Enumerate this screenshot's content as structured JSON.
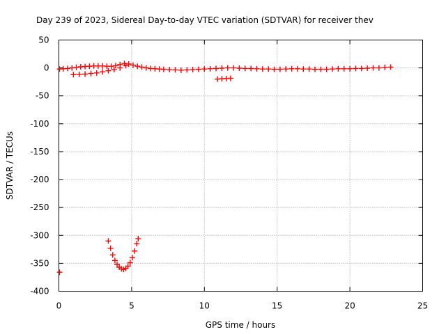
{
  "chart_data": {
    "type": "scatter",
    "title": "Day 239 of 2023, Sidereal Day-to-day VTEC variation (SDTVAR) for receiver thev",
    "xlabel": "GPS time / hours",
    "ylabel": "SDTVAR / TECUs",
    "xlim": [
      0,
      25
    ],
    "ylim": [
      -400,
      50
    ],
    "xticks": [
      "0",
      "5",
      "10",
      "15",
      "20",
      "25"
    ],
    "yticks": [
      "50",
      "0",
      "-50",
      "-100",
      "-150",
      "-200",
      "-250",
      "-300",
      "-350",
      "-400"
    ],
    "grid": true,
    "marker": "plus",
    "color": "#ff0000",
    "series": [
      {
        "points": [
          [
            0.05,
            -2
          ],
          [
            0.3,
            -1.5
          ],
          [
            0.6,
            -1
          ],
          [
            0.9,
            0
          ],
          [
            1.2,
            1
          ],
          [
            1.5,
            2
          ],
          [
            1.8,
            2.5
          ],
          [
            2.1,
            3
          ],
          [
            2.4,
            3.5
          ],
          [
            2.7,
            3.5
          ],
          [
            3.0,
            3.5
          ],
          [
            3.3,
            3
          ],
          [
            3.6,
            3
          ],
          [
            3.9,
            4
          ],
          [
            4.2,
            6
          ],
          [
            4.5,
            8
          ],
          [
            4.8,
            7
          ],
          [
            5.1,
            5
          ],
          [
            5.4,
            3
          ],
          [
            5.7,
            1.5
          ],
          [
            6.0,
            0
          ],
          [
            6.3,
            -1
          ],
          [
            6.6,
            -1.5
          ],
          [
            6.9,
            -2
          ],
          [
            7.2,
            -2.5
          ],
          [
            7.6,
            -3
          ],
          [
            8.0,
            -3.5
          ],
          [
            8.4,
            -4
          ],
          [
            8.8,
            -3.5
          ],
          [
            9.2,
            -3
          ],
          [
            9.6,
            -2.5
          ],
          [
            10.0,
            -2
          ],
          [
            10.4,
            -1.5
          ],
          [
            10.8,
            -1
          ],
          [
            11.2,
            -0.5
          ],
          [
            11.6,
            0
          ],
          [
            12.0,
            0
          ],
          [
            12.4,
            -0.5
          ],
          [
            12.8,
            -1
          ],
          [
            13.2,
            -1
          ],
          [
            13.6,
            -1.5
          ],
          [
            14.0,
            -2
          ],
          [
            14.4,
            -2
          ],
          [
            14.8,
            -2.5
          ],
          [
            15.2,
            -2.5
          ],
          [
            15.6,
            -2
          ],
          [
            16.0,
            -1.5
          ],
          [
            16.4,
            -1.5
          ],
          [
            16.8,
            -2
          ],
          [
            17.2,
            -2
          ],
          [
            17.6,
            -2.5
          ],
          [
            18.0,
            -2.5
          ],
          [
            18.4,
            -2.5
          ],
          [
            18.8,
            -2
          ],
          [
            19.2,
            -1.5
          ],
          [
            19.6,
            -1.5
          ],
          [
            20.0,
            -1.5
          ],
          [
            20.4,
            -1
          ],
          [
            20.8,
            -1
          ],
          [
            21.2,
            -0.5
          ],
          [
            21.6,
            0
          ],
          [
            22.0,
            0
          ],
          [
            22.4,
            1
          ],
          [
            22.8,
            1.5
          ]
        ]
      },
      {
        "points": [
          [
            1.0,
            -12
          ],
          [
            1.4,
            -11.5
          ],
          [
            1.8,
            -11
          ],
          [
            2.2,
            -10
          ],
          [
            2.6,
            -9
          ],
          [
            3.0,
            -7
          ],
          [
            3.4,
            -5
          ],
          [
            3.8,
            -3
          ],
          [
            4.2,
            0
          ],
          [
            4.6,
            4
          ]
        ]
      },
      {
        "points": [
          [
            10.9,
            -20
          ],
          [
            11.2,
            -19.5
          ],
          [
            11.5,
            -19
          ],
          [
            11.8,
            -18.5
          ]
        ]
      },
      {
        "points": [
          [
            3.4,
            -310
          ],
          [
            3.55,
            -323
          ],
          [
            3.7,
            -335
          ],
          [
            3.85,
            -345
          ],
          [
            4.0,
            -352
          ],
          [
            4.15,
            -357
          ],
          [
            4.3,
            -360
          ],
          [
            4.45,
            -361
          ],
          [
            4.6,
            -359
          ],
          [
            4.75,
            -355
          ],
          [
            4.9,
            -349
          ],
          [
            5.05,
            -340
          ],
          [
            5.2,
            -328
          ],
          [
            5.35,
            -315
          ],
          [
            5.45,
            -306
          ]
        ]
      },
      {
        "points": [
          [
            0.05,
            -366
          ]
        ]
      }
    ]
  }
}
